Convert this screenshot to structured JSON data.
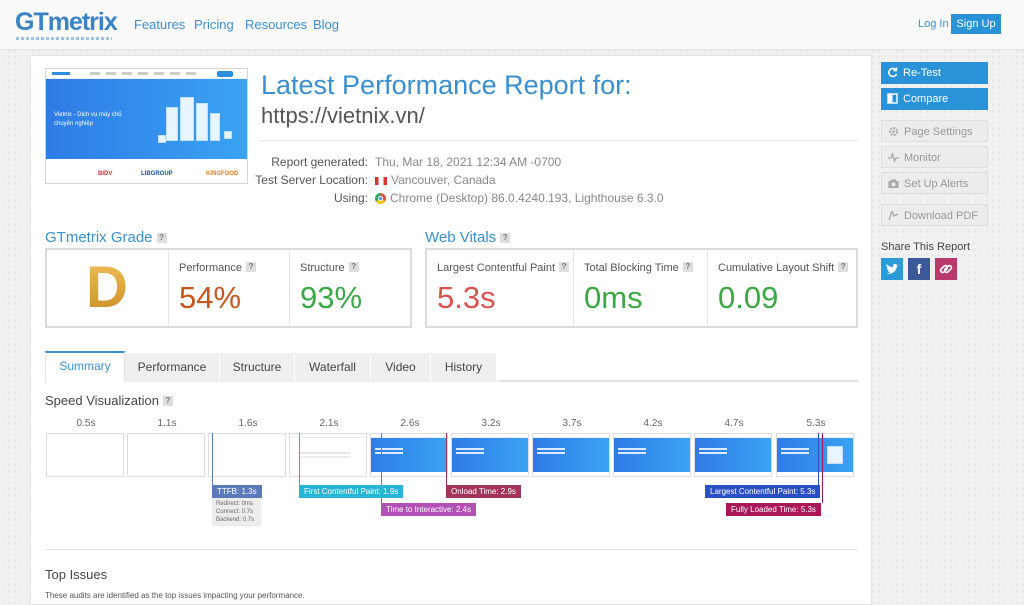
{
  "nav": {
    "logo": "GTmetrix",
    "links": [
      "Features",
      "Pricing",
      "Resources",
      "Blog"
    ],
    "login": "Log In",
    "signup": "Sign Up"
  },
  "thumbnail": {
    "hero_text": "Vietnix - Dịch vụ máy chủ chuyên nghiệp",
    "logos": [
      "BIDV",
      "LIBGROUP",
      "KINGFOOD"
    ]
  },
  "report": {
    "title": "Latest Performance Report for:",
    "url": "https://vietnix.vn/",
    "meta": [
      {
        "label": "Report generated:",
        "value": "Thu, Mar 18, 2021 12:34 AM -0700"
      },
      {
        "label": "Test Server Location:",
        "value": "Vancouver, Canada"
      },
      {
        "label": "Using:",
        "value": "Chrome (Desktop) 86.0.4240.193, Lighthouse 6.3.0"
      }
    ]
  },
  "grade": {
    "title": "GTmetrix Grade",
    "letter": "D",
    "performance_label": "Performance",
    "performance_value": "54%",
    "structure_label": "Structure",
    "structure_value": "93%"
  },
  "vitals": {
    "title": "Web Vitals",
    "lcp_label": "Largest Contentful Paint",
    "lcp_value": "5.3s",
    "tbt_label": "Total Blocking Time",
    "tbt_value": "0ms",
    "cls_label": "Cumulative Layout Shift",
    "cls_value": "0.09"
  },
  "tabs": [
    "Summary",
    "Performance",
    "Structure",
    "Waterfall",
    "Video",
    "History"
  ],
  "speed": {
    "title": "Speed Visualization",
    "times": [
      "0.5s",
      "1.1s",
      "1.6s",
      "2.1s",
      "2.6s",
      "3.2s",
      "3.7s",
      "4.2s",
      "4.7s",
      "5.3s"
    ],
    "markers": {
      "ttfb": "TTFB: 1.3s",
      "fcp": "First Contentful Paint: 1.9s",
      "tti": "Time to Interactive: 2.4s",
      "onload": "Onload Time: 2.9s",
      "lcp": "Largest Contentful Paint: 5.3s",
      "fully": "Fully Loaded Time: 5.3s"
    },
    "ttfb_detail": [
      "Redirect: 0ms",
      "Connect: 0.7s",
      "Backend: 0.7s"
    ]
  },
  "issues": {
    "title": "Top Issues",
    "desc": "These audits are identified as the top issues impacting your performance."
  },
  "sidebar": {
    "retest": "Re-Test",
    "compare": "Compare",
    "page_settings": "Page Settings",
    "monitor": "Monitor",
    "alerts": "Set Up Alerts",
    "pdf": "Download PDF",
    "share_title": "Share This Report"
  },
  "colors": {
    "accent": "#3a8fd0",
    "performance": "#c4581e",
    "good": "#3aa844",
    "bad": "#d9534f"
  }
}
